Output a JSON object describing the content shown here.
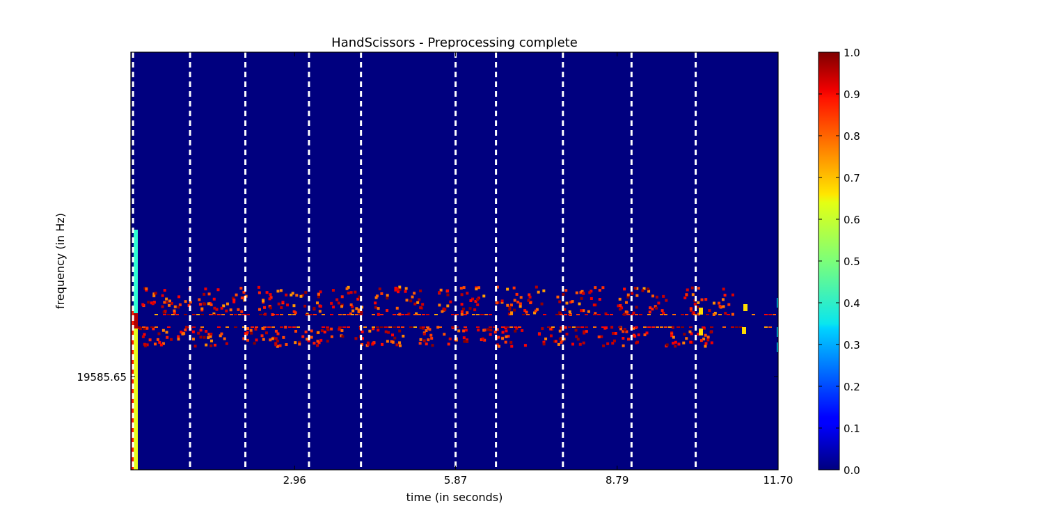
{
  "chart_data": {
    "type": "heatmap",
    "title": "HandScissors - Preprocessing complete",
    "xlabel": "time (in seconds)",
    "ylabel": "frequency (in Hz)",
    "xlim": [
      0,
      11.7
    ],
    "x_ticks": [
      "2.96",
      "5.87",
      "8.79",
      "11.70"
    ],
    "x_tick_values": [
      2.96,
      5.87,
      8.79,
      11.7
    ],
    "y_ticks": [
      "19585.65"
    ],
    "colormap": "jet",
    "colorbar": {
      "range": [
        0.0,
        1.0
      ],
      "ticks": [
        "0.0",
        "0.1",
        "0.2",
        "0.3",
        "0.4",
        "0.5",
        "0.6",
        "0.7",
        "0.8",
        "0.9",
        "1.0"
      ]
    },
    "background_value": 0.0,
    "segment_boundaries_seconds": [
      0.04,
      1.07,
      2.07,
      3.22,
      4.16,
      5.87,
      6.6,
      7.81,
      9.05,
      10.21
    ],
    "grid": false
  }
}
